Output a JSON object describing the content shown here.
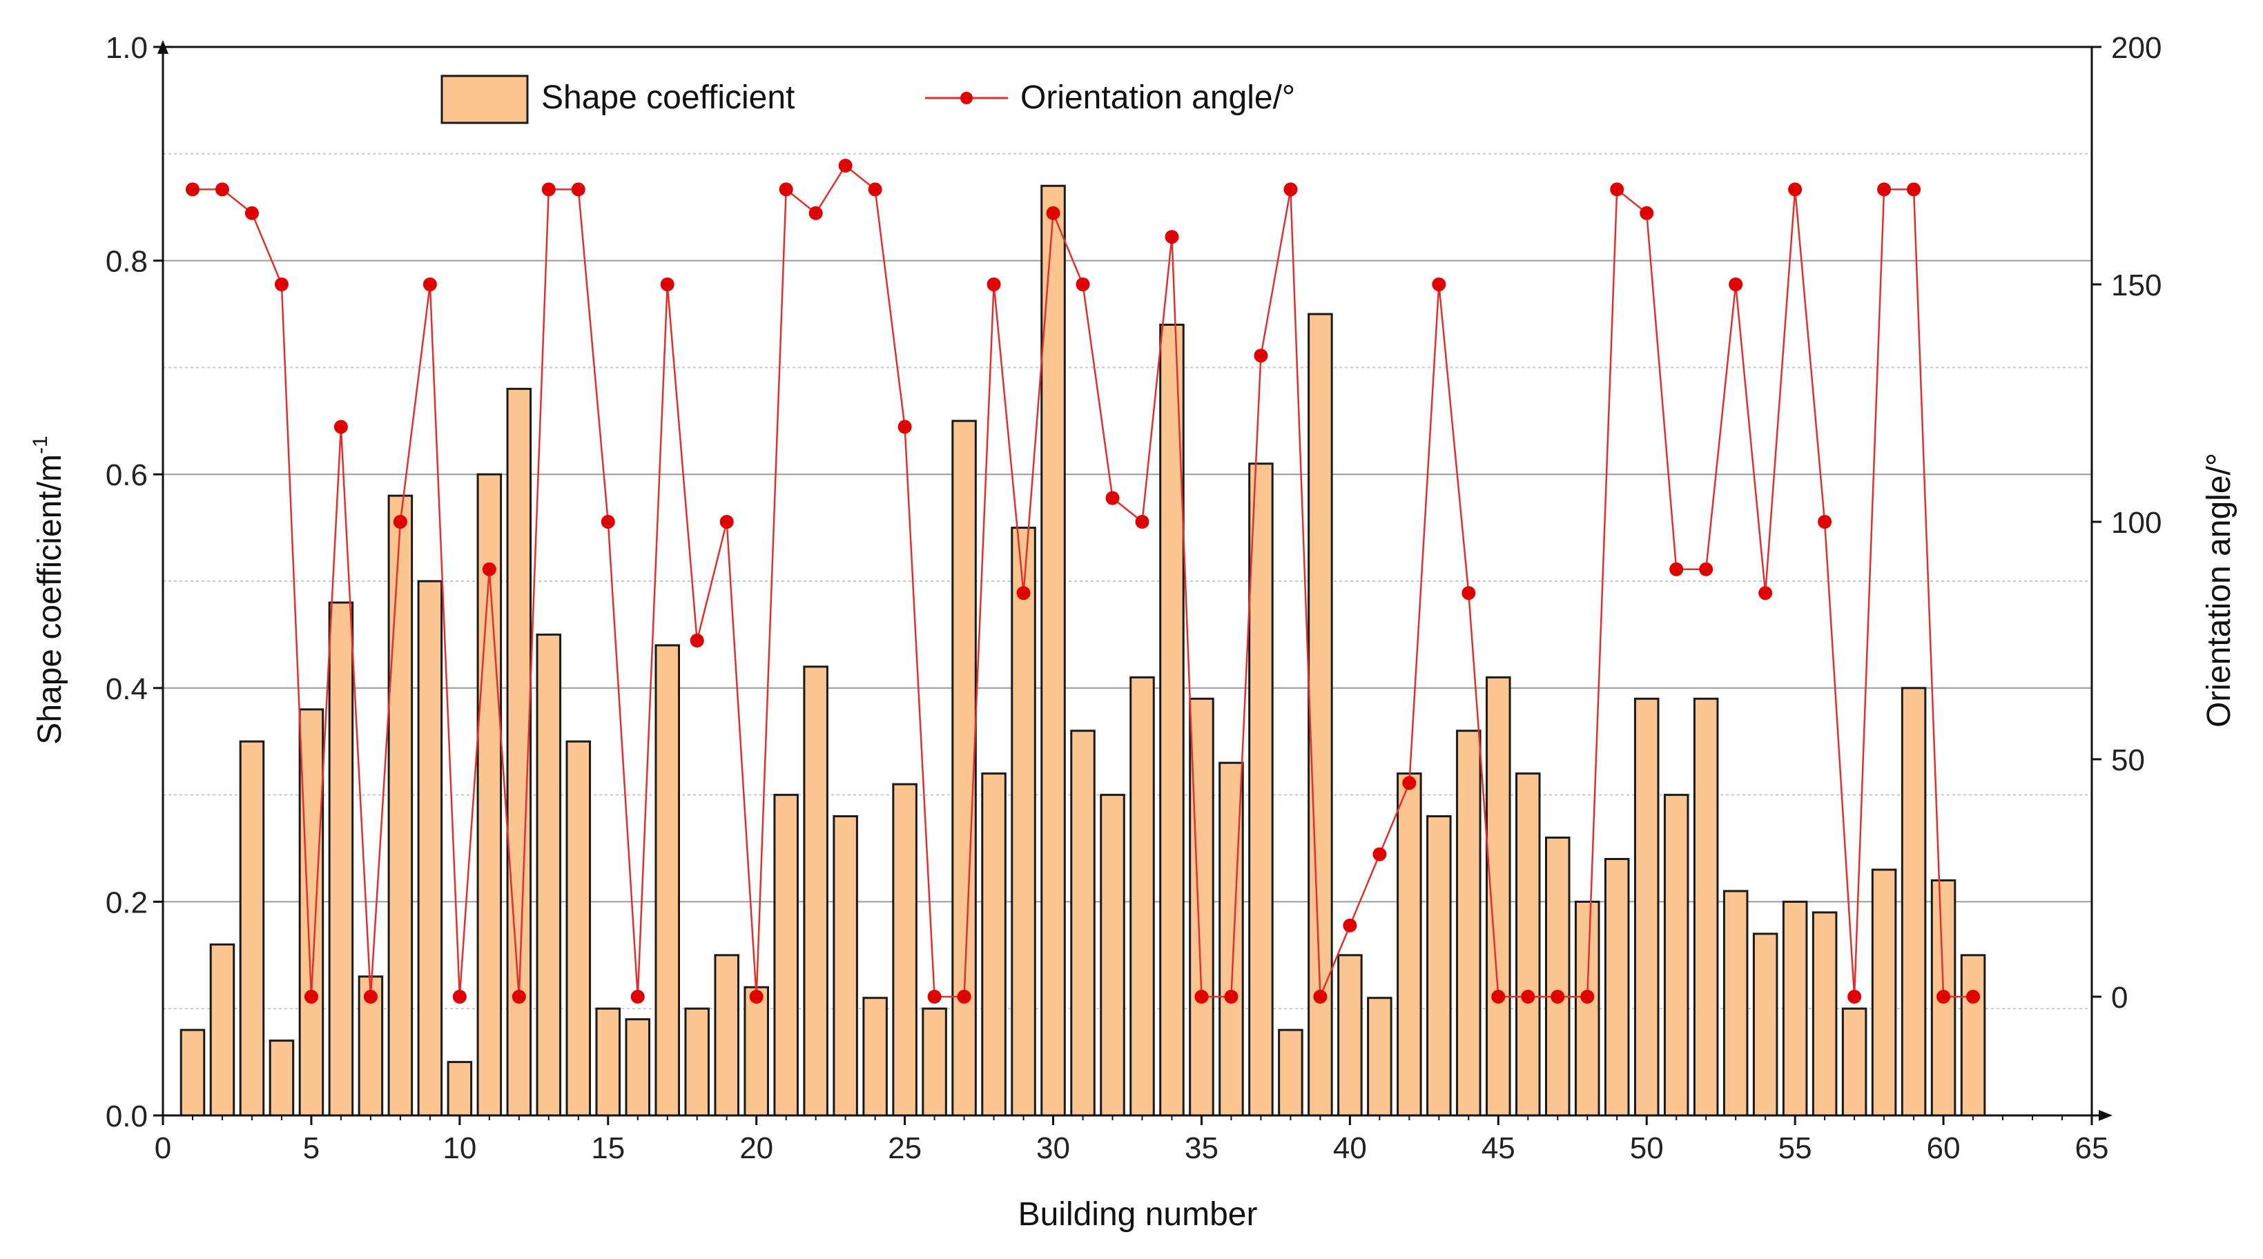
{
  "chart_data": {
    "type": "bar+line",
    "xlabel": "Building number",
    "ylabel_left": "Shape coefficient/m",
    "ylabel_left_sup": "-1",
    "ylabel_right": "Orientation angle/°",
    "xlim": [
      0,
      65
    ],
    "ylim_left": [
      0,
      1.0
    ],
    "ylim_right": [
      -25,
      200
    ],
    "x_ticks": [
      "0",
      "5",
      "10",
      "15",
      "20",
      "25",
      "30",
      "35",
      "40",
      "45",
      "50",
      "55",
      "60",
      "65"
    ],
    "y_left_ticks": [
      "0.0",
      "0.2",
      "0.4",
      "0.6",
      "0.8",
      "1.0"
    ],
    "y_right_ticks": [
      "0",
      "50",
      "100",
      "150",
      "200"
    ],
    "grid": "horizontal",
    "legend_position": "top-left",
    "legend": {
      "bar": "Shape coefficient",
      "line": "Orientation angle/°"
    },
    "colors": {
      "bar_fill": "#FBC592",
      "bar_edge": "#1a1a1a",
      "line": "#E0302E",
      "marker": "#E00000",
      "grid_major": "#9a9a9a",
      "grid_minor": "#c8c8c8"
    },
    "x": [
      1,
      2,
      3,
      4,
      5,
      6,
      7,
      8,
      9,
      10,
      11,
      12,
      13,
      14,
      15,
      16,
      17,
      18,
      19,
      20,
      21,
      22,
      23,
      24,
      25,
      26,
      27,
      28,
      29,
      30,
      31,
      32,
      33,
      34,
      35,
      36,
      37,
      38,
      39,
      40,
      41,
      42,
      43,
      44,
      45,
      46,
      47,
      48,
      49,
      50,
      51,
      52,
      53,
      54,
      55,
      56,
      57,
      58,
      59,
      60,
      61
    ],
    "series": [
      {
        "name": "Shape coefficient",
        "axis": "left",
        "kind": "bar",
        "values": [
          0.08,
          0.16,
          0.35,
          0.07,
          0.38,
          0.48,
          0.13,
          0.58,
          0.5,
          0.05,
          0.6,
          0.68,
          0.45,
          0.35,
          0.1,
          0.09,
          0.44,
          0.1,
          0.15,
          0.12,
          0.3,
          0.42,
          0.28,
          0.11,
          0.31,
          0.1,
          0.65,
          0.32,
          0.55,
          0.87,
          0.36,
          0.3,
          0.41,
          0.74,
          0.39,
          0.33,
          0.61,
          0.08,
          0.75,
          0.15,
          0.11,
          0.32,
          0.28,
          0.36,
          0.41,
          0.32,
          0.26,
          0.2,
          0.24,
          0.39,
          0.3,
          0.39,
          0.21,
          0.17,
          0.2,
          0.19,
          0.1,
          0.23,
          0.4,
          0.22,
          0.15
        ]
      },
      {
        "name": "Orientation angle/°",
        "axis": "right",
        "kind": "line",
        "values": [
          170,
          170,
          165,
          150,
          0,
          120,
          0,
          100,
          150,
          0,
          90,
          0,
          170,
          170,
          100,
          0,
          150,
          75,
          100,
          0,
          170,
          165,
          175,
          170,
          120,
          0,
          0,
          150,
          85,
          165,
          150,
          105,
          100,
          160,
          0,
          0,
          135,
          170,
          0,
          15,
          30,
          45,
          150,
          85,
          0,
          0,
          0,
          0,
          170,
          165,
          90,
          90,
          150,
          85,
          170,
          100,
          0,
          170,
          170,
          0,
          0
        ]
      }
    ]
  }
}
